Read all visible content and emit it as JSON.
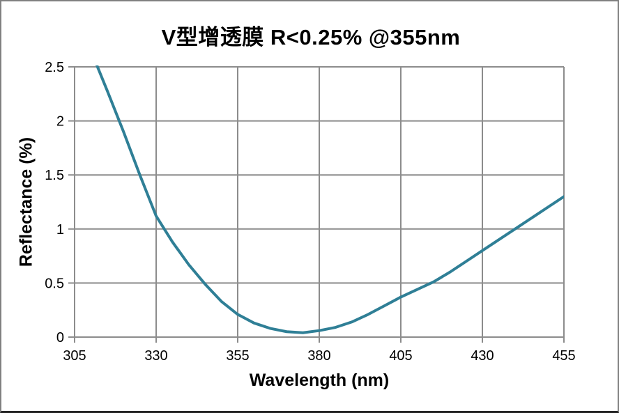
{
  "colors": {
    "curve": "#2F7F96",
    "grid": "#8C8C8C",
    "axis": "#8C8C8C",
    "text": "#000000",
    "frame_border": "#808080"
  },
  "chart_data": {
    "type": "line",
    "title": "V型增透膜 R<0.25% @355nm",
    "xlabel": "Wavelength (nm)",
    "ylabel": "Reflectance (%)",
    "xlim": [
      305,
      455
    ],
    "ylim": [
      0,
      2.5
    ],
    "xticks": [
      305,
      330,
      355,
      380,
      405,
      430,
      455
    ],
    "yticks": [
      0,
      0.5,
      1,
      1.5,
      2,
      2.5
    ],
    "grid": true,
    "legend": "none",
    "series": [
      {
        "name": "reflectance",
        "color": "#2F7F96",
        "x": [
          310,
          315,
          320,
          325,
          330,
          335,
          340,
          345,
          350,
          355,
          360,
          365,
          370,
          375,
          380,
          385,
          390,
          395,
          400,
          405,
          410,
          415,
          420,
          425,
          430,
          435,
          440,
          445,
          450,
          455
        ],
        "y": [
          2.65,
          2.28,
          1.9,
          1.5,
          1.12,
          0.88,
          0.67,
          0.49,
          0.33,
          0.21,
          0.13,
          0.08,
          0.05,
          0.04,
          0.06,
          0.09,
          0.14,
          0.21,
          0.29,
          0.37,
          0.44,
          0.51,
          0.6,
          0.7,
          0.8,
          0.9,
          1.0,
          1.1,
          1.2,
          1.3
        ]
      }
    ]
  }
}
